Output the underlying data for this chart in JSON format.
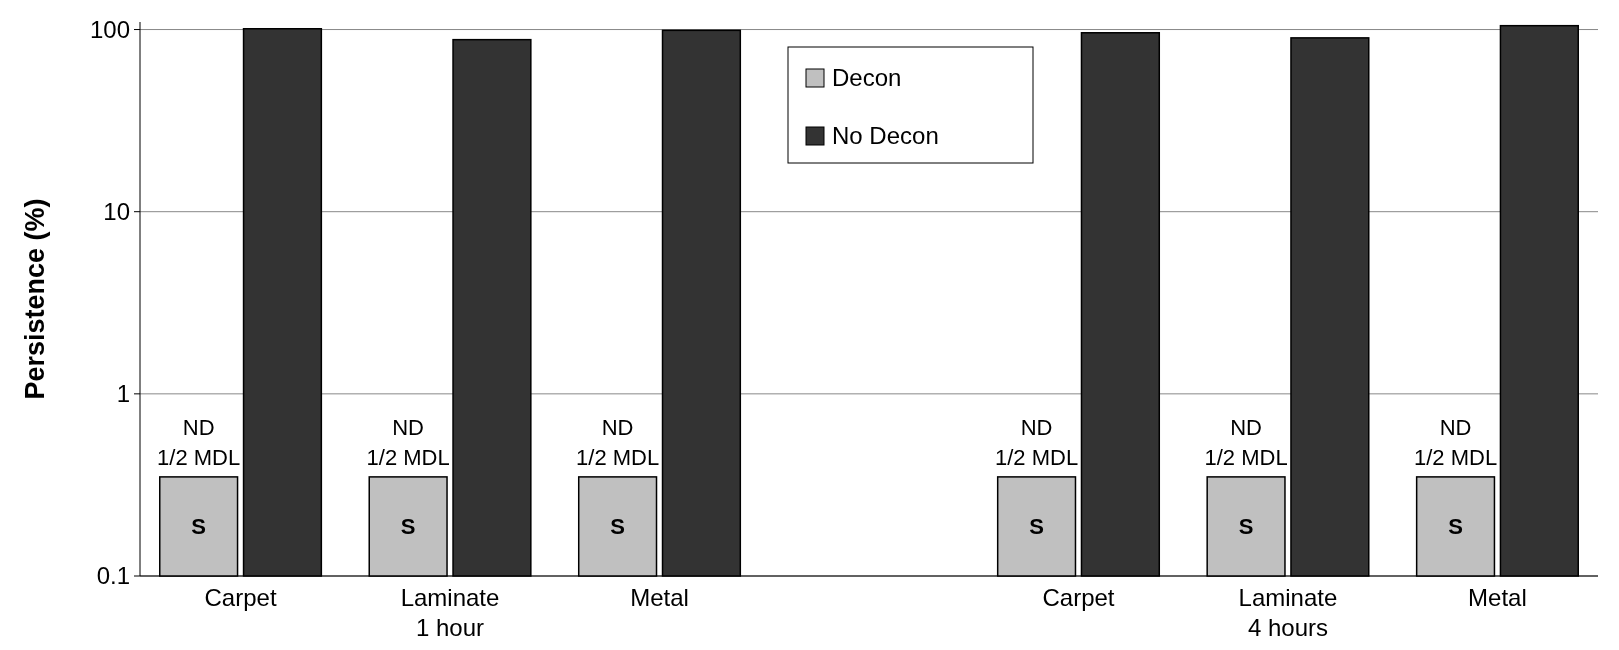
{
  "chart_data": {
    "type": "bar",
    "ylabel": "Persistence (%)",
    "log": true,
    "ylim": [
      0.1,
      110
    ],
    "yticks": [
      0.1,
      1,
      10,
      100
    ],
    "grid": "y",
    "legend": "top",
    "categories": [
      "Carpet",
      "Laminate\n1 hour",
      "Metal",
      null,
      "Carpet",
      "Laminate\n4 hours",
      "Metal"
    ],
    "series": [
      {
        "name": "Decon",
        "color": "#c0c0c0",
        "values": [
          0.35,
          0.35,
          0.35,
          null,
          0.35,
          0.35,
          0.35
        ],
        "value_labels": [
          "S",
          "S",
          "S",
          null,
          "S",
          "S",
          "S"
        ]
      },
      {
        "name": "No Decon",
        "color": "#333333",
        "values": [
          101,
          88,
          99,
          null,
          96,
          90,
          105
        ]
      }
    ],
    "annotations": [
      "ND\n1/2 MDL",
      "ND\n1/2 MDL",
      "ND\n1/2 MDL",
      "ND\n1/2 MDL",
      "ND\n1/2 MDL",
      "ND\n1/2 MDL"
    ]
  }
}
